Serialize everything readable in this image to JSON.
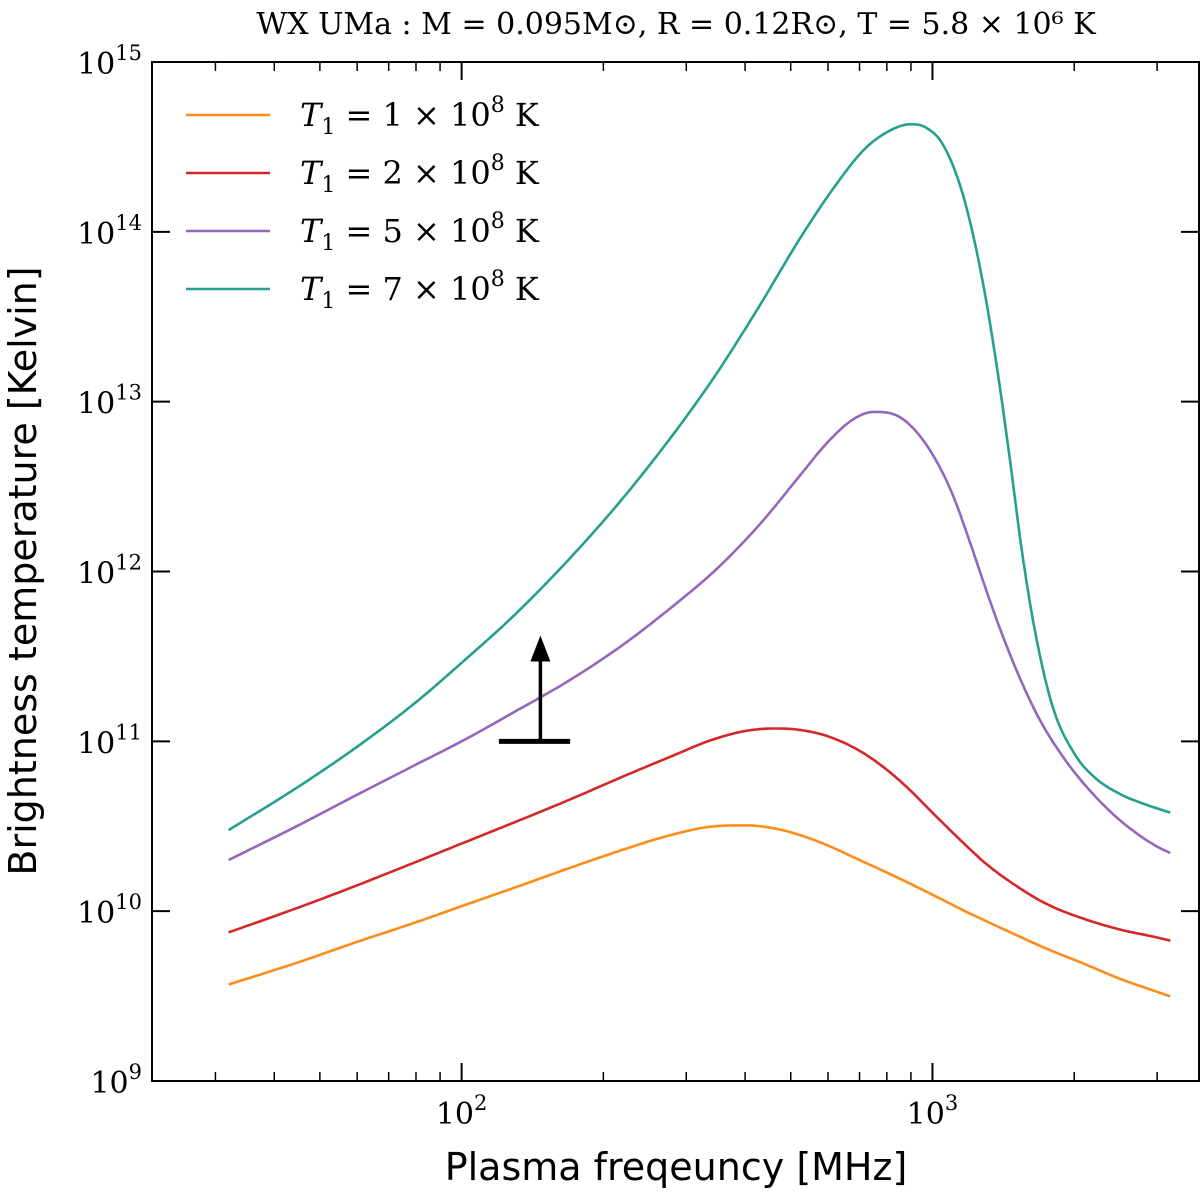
{
  "chart_data": {
    "type": "line",
    "title": "WX UMa : M = 0.095M⊙, R = 0.12R⊙, T = 5.8 × 10⁶ K",
    "xlabel": "Plasma freqeuncy [MHz]",
    "ylabel": "Brightness temperature [Kelvin]",
    "xscale": "log",
    "yscale": "log",
    "xlim": [
      22,
      3700
    ],
    "ylim": [
      1000000000.0,
      1000000000000000.0
    ],
    "x_tick_labels": [
      {
        "value": 100,
        "base": "10",
        "exp": "2"
      },
      {
        "value": 1000,
        "base": "10",
        "exp": "3"
      }
    ],
    "y_tick_labels": [
      {
        "value": 1000000000.0,
        "base": "10",
        "exp": "9"
      },
      {
        "value": 10000000000.0,
        "base": "10",
        "exp": "10"
      },
      {
        "value": 100000000000.0,
        "base": "10",
        "exp": "11"
      },
      {
        "value": 1000000000000.0,
        "base": "10",
        "exp": "12"
      },
      {
        "value": 10000000000000.0,
        "base": "10",
        "exp": "13"
      },
      {
        "value": 100000000000000.0,
        "base": "10",
        "exp": "14"
      },
      {
        "value": 1000000000000000.0,
        "base": "10",
        "exp": "15"
      }
    ],
    "legend_position": "top-left",
    "series": [
      {
        "name": "T1 = 1 × 10^8 K",
        "legend": {
          "sym": "T",
          "sub": "1",
          "mid": " = 1 × 10",
          "exp": "8",
          "unit": " K"
        },
        "color": "#ff8c1a",
        "x": [
          32,
          45,
          60,
          80,
          100,
          130,
          170,
          220,
          280,
          340,
          400,
          480,
          580,
          700,
          850,
          1000,
          1200,
          1450,
          1750,
          2100,
          2500,
          3000,
          3200
        ],
        "y": [
          3700000000.0,
          5000000000.0,
          6600000000.0,
          8600000000.0,
          10700000000.0,
          13800000000.0,
          18000000000.0,
          23000000000.0,
          28200000000.0,
          31500000000.0,
          32000000000.0,
          30000000000.0,
          25300000000.0,
          20000000000.0,
          15600000000.0,
          12500000000.0,
          9700000000.0,
          7600000000.0,
          6000000000.0,
          4900000000.0,
          4000000000.0,
          3350000000.0,
          3150000000.0
        ]
      },
      {
        "name": "T1 = 2 × 10^8 K",
        "legend": {
          "sym": "T",
          "sub": "1",
          "mid": " = 2 × 10",
          "exp": "8",
          "unit": " K"
        },
        "color": "#d62728",
        "x": [
          32,
          45,
          60,
          80,
          100,
          130,
          170,
          220,
          280,
          340,
          400,
          460,
          520,
          600,
          700,
          800,
          900,
          1000,
          1150,
          1300,
          1500,
          1750,
          2100,
          2500,
          3000,
          3200
        ],
        "y": [
          7500000000.0,
          10500000000.0,
          14200000000.0,
          19500000000.0,
          25000000000.0,
          33500000000.0,
          45500000000.0,
          62000000000.0,
          82000000000.0,
          102000000000.0,
          115000000000.0,
          119000000000.0,
          117000000000.0,
          107000000000.0,
          88000000000.0,
          68000000000.0,
          51000000000.0,
          38000000000.0,
          26000000000.0,
          19000000000.0,
          14200000000.0,
          11000000000.0,
          9000000000.0,
          7800000000.0,
          7000000000.0,
          6700000000.0
        ]
      },
      {
        "name": "T1 = 5 × 10^8 K",
        "legend": {
          "sym": "T",
          "sub": "1",
          "mid": " = 5 × 10",
          "exp": "8",
          "unit": " K"
        },
        "color": "#9467bd",
        "x": [
          32,
          45,
          60,
          80,
          100,
          130,
          170,
          220,
          280,
          350,
          430,
          520,
          600,
          680,
          750,
          820,
          900,
          1000,
          1100,
          1200,
          1300,
          1400,
          1550,
          1700,
          1900,
          2100,
          2400,
          2700,
          3000,
          3200
        ],
        "y": [
          20000000000.0,
          32000000000.0,
          48500000000.0,
          73000000000.0,
          100000000000.0,
          150000000000.0,
          230000000000.0,
          370000000000.0,
          620000000000.0,
          1050000000000.0,
          1900000000000.0,
          3600000000000.0,
          5800000000000.0,
          7900000000000.0,
          8700000000000.0,
          8500000000000.0,
          7200000000000.0,
          4900000000000.0,
          2900000000000.0,
          1500000000000.0,
          780000000000.0,
          440000000000.0,
          220000000000.0,
          130000000000.0,
          80000000000.0,
          56000000000.0,
          38000000000.0,
          29000000000.0,
          24000000000.0,
          22000000000.0
        ]
      },
      {
        "name": "T1 = 7 × 10^8 K",
        "legend": {
          "sym": "T",
          "sub": "1",
          "mid": " = 7 × 10",
          "exp": "8",
          "unit": " K"
        },
        "color": "#26a08e",
        "x": [
          32,
          45,
          60,
          80,
          100,
          130,
          170,
          220,
          280,
          350,
          430,
          520,
          620,
          720,
          820,
          900,
          970,
          1050,
          1150,
          1250,
          1350,
          1450,
          1550,
          1650,
          1800,
          2000,
          2200,
          2500,
          2800,
          3200
        ],
        "y": [
          30000000000.0,
          54000000000.0,
          93000000000.0,
          170000000000.0,
          290000000000.0,
          560000000000.0,
          1200000000000.0,
          2700000000000.0,
          6300000000000.0,
          15000000000000.0,
          37000000000000.0,
          89000000000000.0,
          185000000000000.0,
          310000000000000.0,
          400000000000000.0,
          430000000000000.0,
          410000000000000.0,
          330000000000000.0,
          180000000000000.0,
          70000000000000.0,
          21000000000000.0,
          5300000000000.0,
          1300000000000.0,
          450000000000.0,
          160000000000.0,
          85000000000.0,
          62000000000.0,
          49000000000.0,
          43000000000.0,
          38000000000.0
        ]
      }
    ],
    "annotations": [
      {
        "type": "lower-limit-arrow",
        "x": 147,
        "x_bar": [
          120,
          170
        ],
        "y_base": 100000000000.0,
        "y_tip": 420000000000.0,
        "color": "#000000"
      }
    ]
  }
}
